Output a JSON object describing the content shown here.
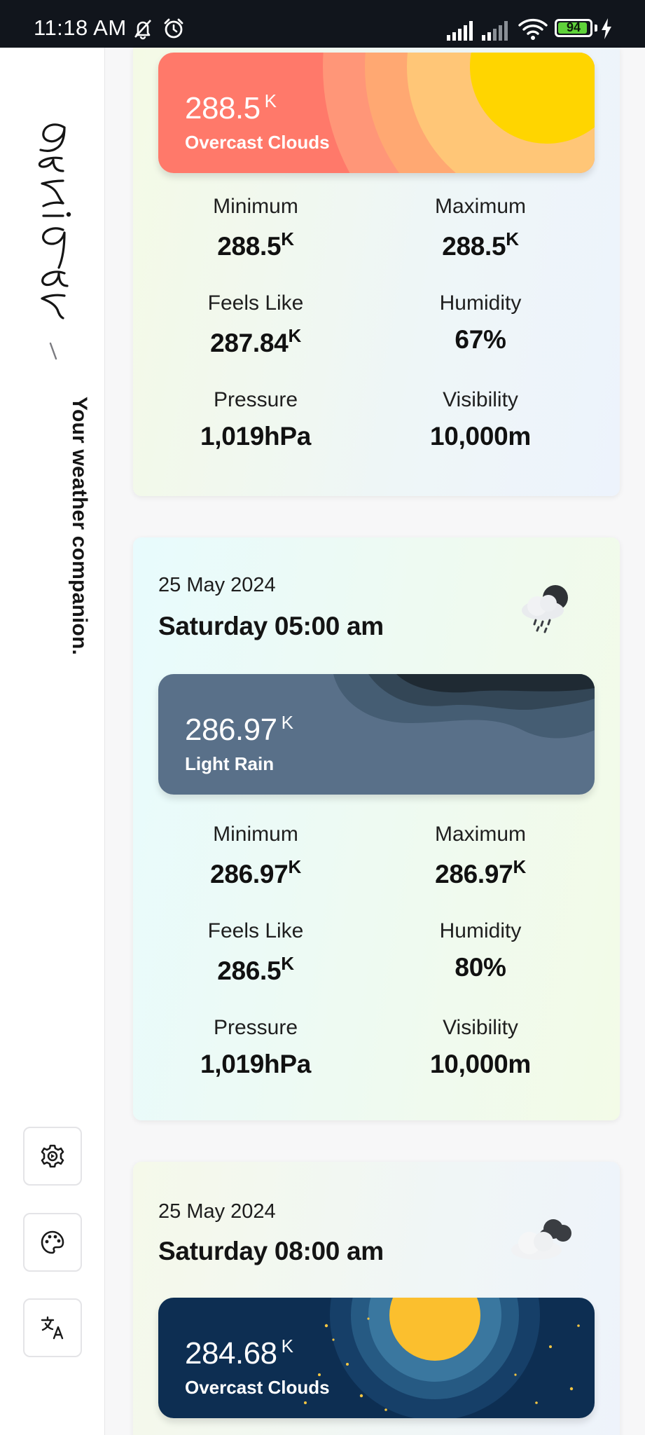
{
  "status_bar": {
    "time": "11:18 AM",
    "battery": "94",
    "battery_level": 0.94,
    "icons": [
      "bell-off-icon",
      "alarm-icon",
      "signal-icon",
      "signal-icon",
      "wifi-icon",
      "battery-icon",
      "charging-icon"
    ]
  },
  "sidebar": {
    "logo_icon": "amihan-script-logo",
    "separator": "/",
    "tagline": "Your weather companion.",
    "buttons": [
      {
        "name": "settings-button",
        "icon": "gear-icon"
      },
      {
        "name": "theme-button",
        "icon": "palette-icon"
      },
      {
        "name": "language-button",
        "icon": "translate-icon"
      }
    ]
  },
  "labels": {
    "minimum": "Minimum",
    "maximum": "Maximum",
    "feels_like": "Feels Like",
    "humidity": "Humidity",
    "pressure": "Pressure",
    "visibility": "Visibility",
    "unit_k": "K"
  },
  "forecasts": [
    {
      "temp": "288.5",
      "description": "Overcast Clouds",
      "min": "288.5",
      "max": "288.5",
      "feels_like": "287.84",
      "humidity": "67%",
      "pressure": "1,019hPa",
      "visibility": "10,000m",
      "banner_theme": "sunny-coral",
      "colors": {
        "banner": "#ff7a6b",
        "sun": "#ffd500"
      }
    },
    {
      "date": "25 May 2024",
      "day_time": "Saturday 05:00 am",
      "icon": "rain-cloud-icon",
      "temp": "286.97",
      "description": "Light Rain",
      "min": "286.97",
      "max": "286.97",
      "feels_like": "286.5",
      "humidity": "80%",
      "pressure": "1,019hPa",
      "visibility": "10,000m",
      "banner_theme": "rain-slate",
      "colors": {
        "banner": "#597089"
      }
    },
    {
      "date": "25 May 2024",
      "day_time": "Saturday 08:00 am",
      "icon": "cloudy-icon",
      "temp": "284.68",
      "description": "Overcast Clouds",
      "banner_theme": "night-navy",
      "colors": {
        "banner": "#0d2e52",
        "sun": "#fbbf2e"
      }
    }
  ]
}
